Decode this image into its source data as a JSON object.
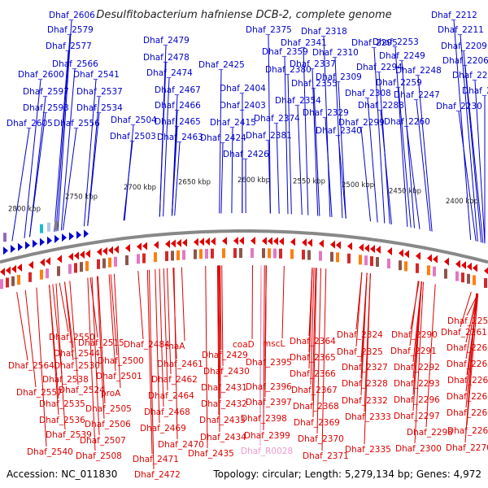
{
  "title": "Desulfitobacterium hafniense DCB-2, complete genome",
  "footer": {
    "accession": "Accession: NC_011830",
    "stats": "Topology: circular; Length: 5,279,134 bp; Genes: 4,972"
  },
  "colors": {
    "forward": "#0000cc",
    "reverse": "#dd0000",
    "pseudo": "#ee99cc",
    "backbone": "#888888"
  },
  "ticks": [
    "2800 kbp",
    "2750 kbp",
    "2700 kbp",
    "2650 kbp",
    "2600 kbp",
    "2550 kbp",
    "2500 kbp",
    "2450 kbp",
    "2400 kbp"
  ],
  "forward_genes": [
    "Dhaf_2606",
    "Dhaf_2579",
    "Dhaf_2577",
    "Dhaf_2566",
    "Dhaf_2600",
    "Dhaf_2541",
    "Dhaf_2597",
    "Dhaf_2537",
    "Dhaf_2593",
    "Dhaf_2534",
    "Dhaf_2605",
    "Dhaf_2556",
    "Dhaf_2504",
    "Dhaf_2503",
    "Dhaf_2479",
    "Dhaf_2478",
    "Dhaf_2474",
    "Dhaf_2467",
    "Dhaf_2466",
    "Dhaf_2465",
    "Dhaf_2463",
    "Dhaf_2425",
    "Dhaf_2404",
    "Dhaf_2403",
    "Dhaf_2415",
    "Dhaf_2424",
    "Dhaf_2426",
    "Dhaf_2375",
    "Dhaf_2359",
    "Dhaf_2380",
    "Dhaf_2374",
    "Dhaf_2381",
    "Dhaf_2318",
    "Dhaf_2341",
    "Dhaf_2337",
    "Dhaf_2355",
    "Dhaf_2354",
    "Dhaf_2329",
    "Dhaf_2340",
    "Dhaf_2310",
    "Dhaf_2309",
    "Dhaf_2295",
    "Dhaf_2294",
    "Dhaf_2308",
    "Dhaf_2288",
    "Dhaf_2299",
    "Dhaf_2253",
    "Dhaf_2249",
    "Dhaf_2248",
    "Dhaf_2259",
    "Dhaf_2247",
    "Dhaf_2260",
    "Dhaf_2212",
    "Dhaf_2211",
    "Dhaf_2209",
    "Dhaf_2206",
    "Dhaf_2205",
    "Dhaf_2230",
    "Dhaf_2202"
  ],
  "reverse_genes": [
    "Dhaf_2550",
    "Dhaf_2544",
    "Dhaf_2564",
    "Dhaf_2530",
    "Dhaf_2538",
    "Dhaf_2557",
    "Dhaf_2524",
    "Dhaf_2535",
    "Dhaf_2536",
    "Dhaf_2539",
    "Dhaf_2540",
    "Dhaf_2515",
    "Dhaf_2500",
    "Dhaf_2501",
    "proA",
    "Dhaf_2505",
    "Dhaf_2506",
    "Dhaf_2507",
    "Dhaf_2508",
    "Dhaf_2484",
    "tnaA",
    "Dhaf_2461",
    "Dhaf_2462",
    "Dhaf_2464",
    "Dhaf_2468",
    "Dhaf_2469",
    "Dhaf_2470",
    "Dhaf_2471",
    "Dhaf_2472",
    "coaD",
    "Dhaf_2429",
    "Dhaf_2430",
    "Dhaf_2431",
    "Dhaf_2432",
    "Dhaf_2433",
    "Dhaf_2434",
    "Dhaf_2435",
    "mscL",
    "Dhaf_2395",
    "Dhaf_2396",
    "Dhaf_2397",
    "Dhaf_2398",
    "Dhaf_2399",
    "Dhaf_R0028",
    "Dhaf_2364",
    "Dhaf_2365",
    "Dhaf_2366",
    "Dhaf_2367",
    "Dhaf_2368",
    "Dhaf_2369",
    "Dhaf_2370",
    "Dhaf_2371",
    "Dhaf_2324",
    "Dhaf_2325",
    "Dhaf_2327",
    "Dhaf_2328",
    "Dhaf_2332",
    "Dhaf_2333",
    "Dhaf_2335",
    "Dhaf_2290",
    "Dhaf_2291",
    "Dhaf_2292",
    "Dhaf_2293",
    "Dhaf_2296",
    "Dhaf_2297",
    "Dhaf_2298",
    "Dhaf_2300",
    "Dhaf_2252",
    "Dhaf_2261",
    "Dhaf_2262",
    "Dhaf_2263",
    "Dhaf_2264",
    "Dhaf_2265",
    "Dhaf_2266",
    "Dhaf_2268",
    "Dhaf_2270"
  ],
  "pseudo_genes": [
    "Dhaf_R0028"
  ]
}
